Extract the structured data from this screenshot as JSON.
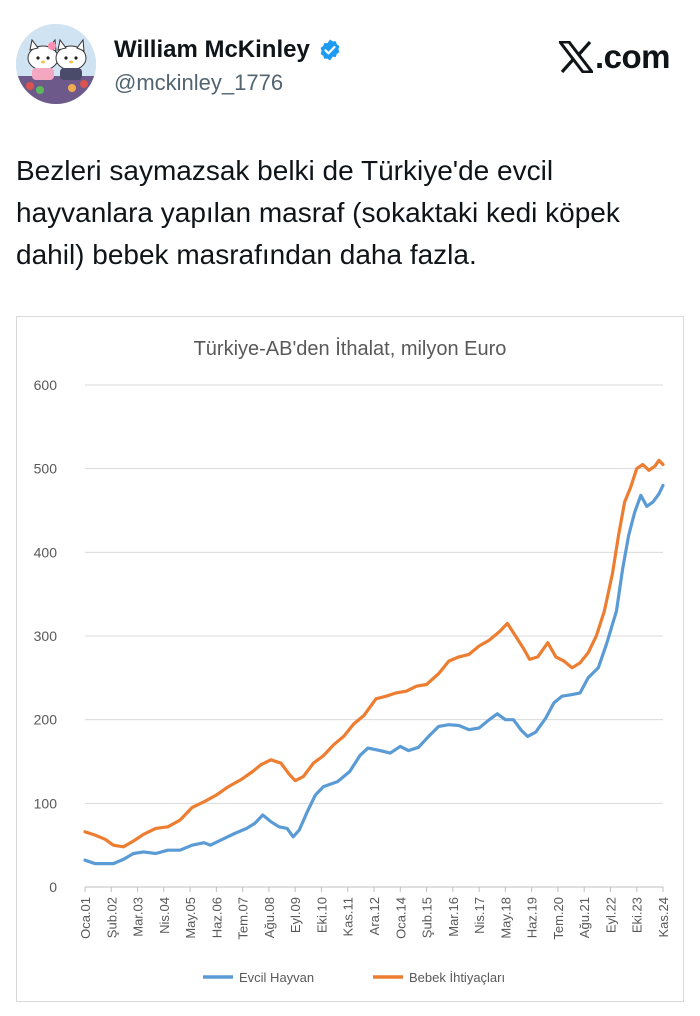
{
  "post": {
    "author_name": "William McKinley",
    "author_handle": "@mckinley_1776",
    "site": ".com",
    "text": "Bezleri saymazsak belki de Türkiye'de evcil hayvanlara yapılan masraf (sokaktaki kedi köpek dahil) bebek masrafından daha fazla.",
    "verified_icon": "verified-badge-icon",
    "brand_color": "#1d9bf0"
  },
  "chart_data": {
    "type": "line",
    "title": "Türkiye-AB'den İthalat, milyon Euro",
    "xlabel": "",
    "ylabel": "",
    "ylim": [
      0,
      600
    ],
    "yticks": [
      0,
      100,
      200,
      300,
      400,
      500,
      600
    ],
    "grid": true,
    "legend": "bottom",
    "x_start": "2001-01",
    "x_end": "2024-11",
    "x_tick_labels": [
      "Oca.01",
      "Şub.02",
      "Mar.03",
      "Nis.04",
      "May.05",
      "Haz.06",
      "Tem.07",
      "Ağu.08",
      "Eyl.09",
      "Eki.10",
      "Kas.11",
      "Ara.12",
      "Oca.14",
      "Şub.15",
      "Mar.16",
      "Nis.17",
      "May.18",
      "Haz.19",
      "Tem.20",
      "Ağu.21",
      "Eyl.22",
      "Eki.23",
      "Kas.24"
    ],
    "series": [
      {
        "name": "Evcil Hayvan",
        "color": "#5b9bd5",
        "points": [
          [
            "2001-01",
            32
          ],
          [
            "2001-06",
            28
          ],
          [
            "2001-12",
            28
          ],
          [
            "2002-03",
            28
          ],
          [
            "2002-08",
            33
          ],
          [
            "2003-01",
            40
          ],
          [
            "2003-06",
            42
          ],
          [
            "2003-12",
            40
          ],
          [
            "2004-06",
            44
          ],
          [
            "2004-12",
            44
          ],
          [
            "2005-06",
            50
          ],
          [
            "2005-12",
            53
          ],
          [
            "2006-03",
            50
          ],
          [
            "2006-09",
            57
          ],
          [
            "2007-03",
            64
          ],
          [
            "2007-09",
            70
          ],
          [
            "2008-01",
            76
          ],
          [
            "2008-05",
            86
          ],
          [
            "2008-09",
            78
          ],
          [
            "2009-01",
            72
          ],
          [
            "2009-05",
            70
          ],
          [
            "2009-08",
            60
          ],
          [
            "2009-11",
            68
          ],
          [
            "2010-03",
            90
          ],
          [
            "2010-07",
            110
          ],
          [
            "2010-11",
            120
          ],
          [
            "2011-06",
            126
          ],
          [
            "2011-12",
            138
          ],
          [
            "2012-05",
            157
          ],
          [
            "2012-09",
            166
          ],
          [
            "2013-03",
            163
          ],
          [
            "2013-08",
            160
          ],
          [
            "2014-01",
            168
          ],
          [
            "2014-05",
            163
          ],
          [
            "2014-10",
            167
          ],
          [
            "2015-03",
            180
          ],
          [
            "2015-08",
            192
          ],
          [
            "2016-01",
            194
          ],
          [
            "2016-06",
            193
          ],
          [
            "2016-11",
            188
          ],
          [
            "2017-04",
            190
          ],
          [
            "2017-09",
            200
          ],
          [
            "2018-01",
            207
          ],
          [
            "2018-05",
            200
          ],
          [
            "2018-09",
            200
          ],
          [
            "2019-01",
            187
          ],
          [
            "2019-04",
            180
          ],
          [
            "2019-08",
            185
          ],
          [
            "2020-01",
            202
          ],
          [
            "2020-05",
            220
          ],
          [
            "2020-09",
            228
          ],
          [
            "2021-02",
            230
          ],
          [
            "2021-06",
            232
          ],
          [
            "2021-10",
            250
          ],
          [
            "2022-03",
            262
          ],
          [
            "2022-07",
            290
          ],
          [
            "2022-12",
            330
          ],
          [
            "2023-03",
            380
          ],
          [
            "2023-06",
            420
          ],
          [
            "2023-09",
            448
          ],
          [
            "2023-12",
            468
          ],
          [
            "2024-03",
            455
          ],
          [
            "2024-06",
            460
          ],
          [
            "2024-09",
            470
          ],
          [
            "2024-11",
            480
          ]
        ]
      },
      {
        "name": "Bebek İhtiyaçları",
        "color": "#ed7d31",
        "points": [
          [
            "2001-01",
            66
          ],
          [
            "2001-06",
            62
          ],
          [
            "2001-11",
            57
          ],
          [
            "2002-03",
            50
          ],
          [
            "2002-08",
            48
          ],
          [
            "2003-01",
            55
          ],
          [
            "2003-06",
            63
          ],
          [
            "2003-12",
            70
          ],
          [
            "2004-06",
            72
          ],
          [
            "2004-12",
            80
          ],
          [
            "2005-06",
            95
          ],
          [
            "2005-12",
            102
          ],
          [
            "2006-06",
            110
          ],
          [
            "2006-12",
            120
          ],
          [
            "2007-06",
            128
          ],
          [
            "2007-12",
            138
          ],
          [
            "2008-04",
            146
          ],
          [
            "2008-09",
            152
          ],
          [
            "2009-02",
            148
          ],
          [
            "2009-06",
            135
          ],
          [
            "2009-09",
            127
          ],
          [
            "2010-01",
            132
          ],
          [
            "2010-06",
            148
          ],
          [
            "2010-11",
            157
          ],
          [
            "2011-04",
            170
          ],
          [
            "2011-09",
            180
          ],
          [
            "2012-02",
            195
          ],
          [
            "2012-07",
            205
          ],
          [
            "2013-01",
            225
          ],
          [
            "2013-06",
            228
          ],
          [
            "2013-11",
            232
          ],
          [
            "2014-04",
            234
          ],
          [
            "2014-09",
            240
          ],
          [
            "2015-02",
            242
          ],
          [
            "2015-08",
            255
          ],
          [
            "2016-01",
            270
          ],
          [
            "2016-06",
            275
          ],
          [
            "2016-11",
            278
          ],
          [
            "2017-04",
            288
          ],
          [
            "2017-09",
            295
          ],
          [
            "2018-02",
            305
          ],
          [
            "2018-06",
            315
          ],
          [
            "2018-10",
            300
          ],
          [
            "2019-02",
            285
          ],
          [
            "2019-05",
            272
          ],
          [
            "2019-09",
            275
          ],
          [
            "2020-02",
            292
          ],
          [
            "2020-06",
            275
          ],
          [
            "2020-10",
            270
          ],
          [
            "2021-02",
            262
          ],
          [
            "2021-06",
            268
          ],
          [
            "2021-10",
            280
          ],
          [
            "2022-02",
            300
          ],
          [
            "2022-06",
            330
          ],
          [
            "2022-10",
            375
          ],
          [
            "2023-01",
            420
          ],
          [
            "2023-04",
            460
          ],
          [
            "2023-07",
            478
          ],
          [
            "2023-10",
            500
          ],
          [
            "2024-01",
            505
          ],
          [
            "2024-04",
            498
          ],
          [
            "2024-07",
            503
          ],
          [
            "2024-09",
            510
          ],
          [
            "2024-11",
            505
          ]
        ]
      }
    ]
  }
}
